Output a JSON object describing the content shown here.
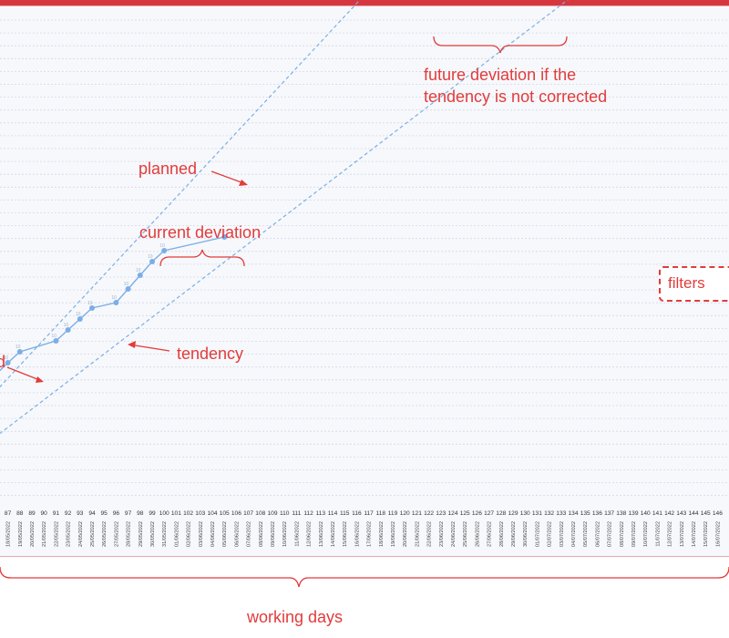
{
  "chart_data": {
    "type": "line",
    "x_start": 87,
    "x_end": 146,
    "x_dates": [
      "18/05/2022",
      "19/05/2022",
      "20/05/2022",
      "21/05/2022",
      "22/05/2022",
      "23/05/2022",
      "24/05/2022",
      "25/05/2022",
      "26/05/2022",
      "27/05/2022",
      "28/05/2022",
      "29/05/2022",
      "30/05/2022",
      "31/05/2022",
      "01/06/2022",
      "02/06/2022",
      "03/06/2022",
      "04/06/2022",
      "05/06/2022",
      "06/06/2022",
      "07/06/2022",
      "08/06/2022",
      "09/06/2022",
      "10/06/2022",
      "11/06/2022",
      "12/06/2022",
      "13/06/2022",
      "14/06/2022",
      "15/06/2022",
      "16/06/2022",
      "17/06/2022",
      "18/06/2022",
      "19/06/2022",
      "20/06/2022",
      "21/06/2022",
      "22/06/2022",
      "23/06/2022",
      "24/06/2022",
      "25/06/2022",
      "26/06/2022",
      "27/06/2022",
      "28/06/2022",
      "29/06/2022",
      "30/06/2022",
      "01/07/2022",
      "02/07/2022",
      "03/07/2022",
      "04/07/2022",
      "05/07/2022",
      "06/07/2022",
      "07/07/2022",
      "08/07/2022",
      "09/07/2022",
      "10/07/2022",
      "11/07/2022",
      "12/07/2022",
      "13/07/2022",
      "14/07/2022",
      "15/07/2022",
      "16/07/2022"
    ],
    "series": [
      {
        "x": [
          86.3,
          87,
          88,
          91,
          92,
          93,
          94,
          96,
          97,
          98,
          99,
          100,
          105
        ],
        "y": [
          46,
          49,
          53,
          57,
          61,
          65,
          69,
          71,
          76,
          81,
          86,
          90,
          95
        ],
        "point_label": "10",
        "color": "#7aaee8"
      }
    ],
    "planned_line": {
      "x": [
        86.3,
        125
      ],
      "y": [
        40,
        223
      ],
      "color": "#7aaee8"
    },
    "tendency_line": {
      "x": [
        86.3,
        137.5
      ],
      "y": [
        23,
        195
      ],
      "color": "#7aaee8"
    },
    "y_range": [
      0,
      200
    ],
    "grid": true
  },
  "annotations": {
    "future_line1": "future deviation if the",
    "future_line2": "tendency is not corrected",
    "planned": "planned",
    "current_deviation": "current deviation",
    "tendency": "tendency",
    "left_fragment": "d",
    "filters": "filters",
    "working_days": "working days"
  },
  "colors": {
    "accent": "#e23b3b",
    "series": "#7aaee8",
    "top_bar": "#d6373f"
  }
}
